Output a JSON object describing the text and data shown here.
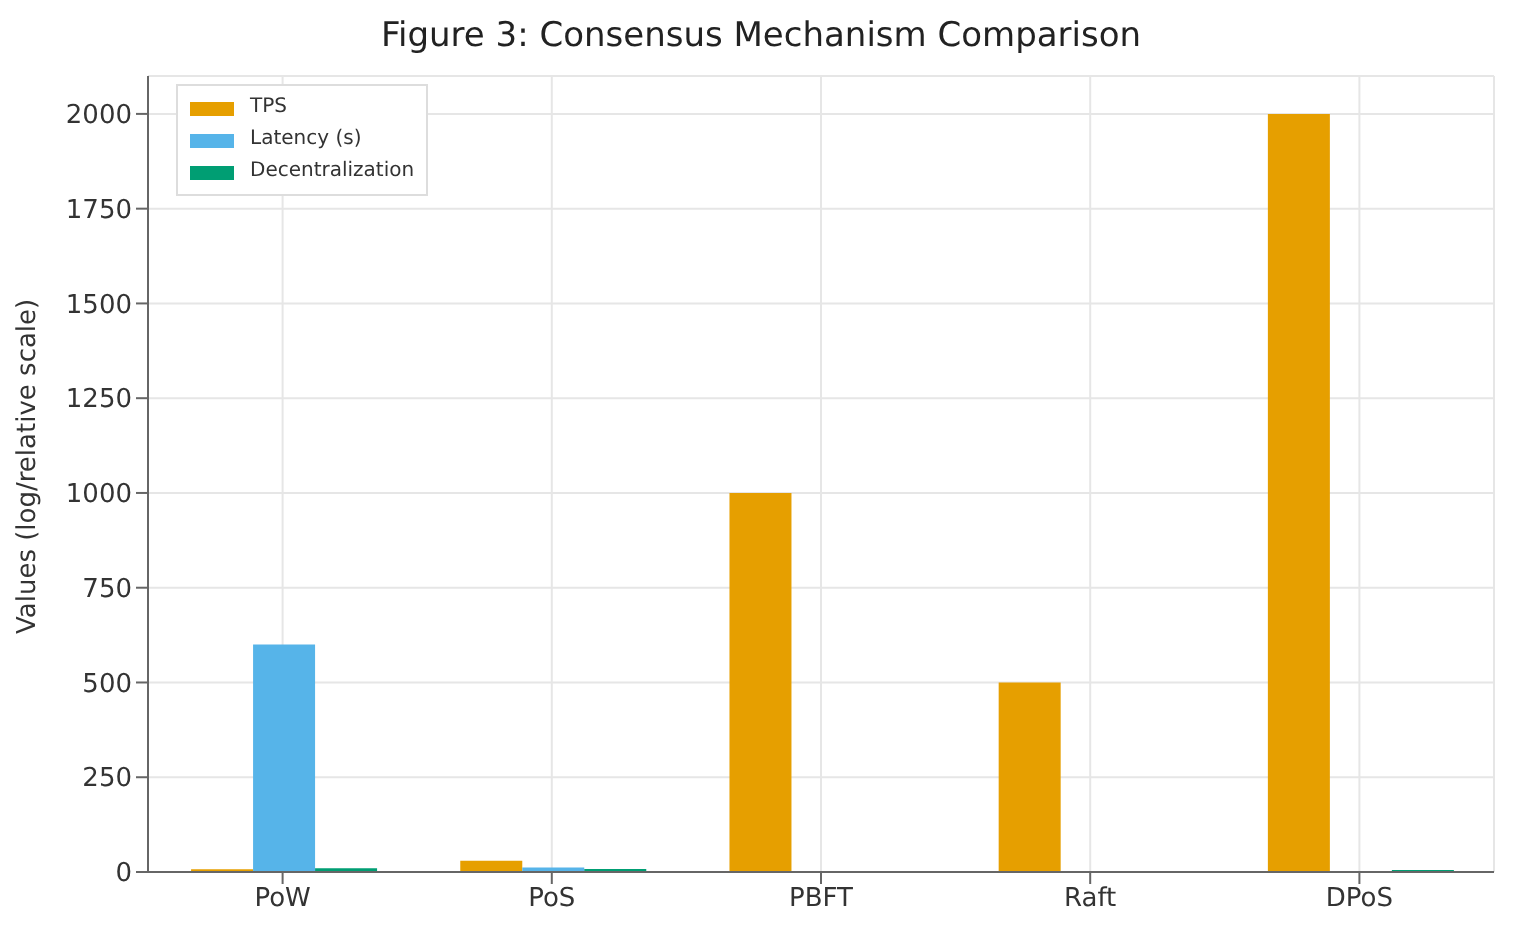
{
  "chart_data": {
    "type": "bar",
    "title": "Figure 3: Consensus Mechanism Comparison",
    "ylabel": "Values (log/relative scale)",
    "categories": [
      "PoW",
      "PoS",
      "PBFT",
      "Raft",
      "DPoS"
    ],
    "series": [
      {
        "name": "TPS",
        "color": "#e69f00",
        "values": [
          7,
          30,
          1000,
          500,
          2000
        ]
      },
      {
        "name": "Latency (s)",
        "color": "#56b4e9",
        "values": [
          600,
          12,
          null,
          null,
          null
        ]
      },
      {
        "name": "Decentralization",
        "color": "#009e73",
        "values": [
          10,
          8,
          null,
          null,
          5
        ]
      }
    ],
    "ylim": [
      0,
      2100
    ],
    "yticks": [
      0,
      250,
      500,
      750,
      1000,
      1250,
      1500,
      1750,
      2000
    ],
    "grid": true,
    "legend": "top left"
  }
}
